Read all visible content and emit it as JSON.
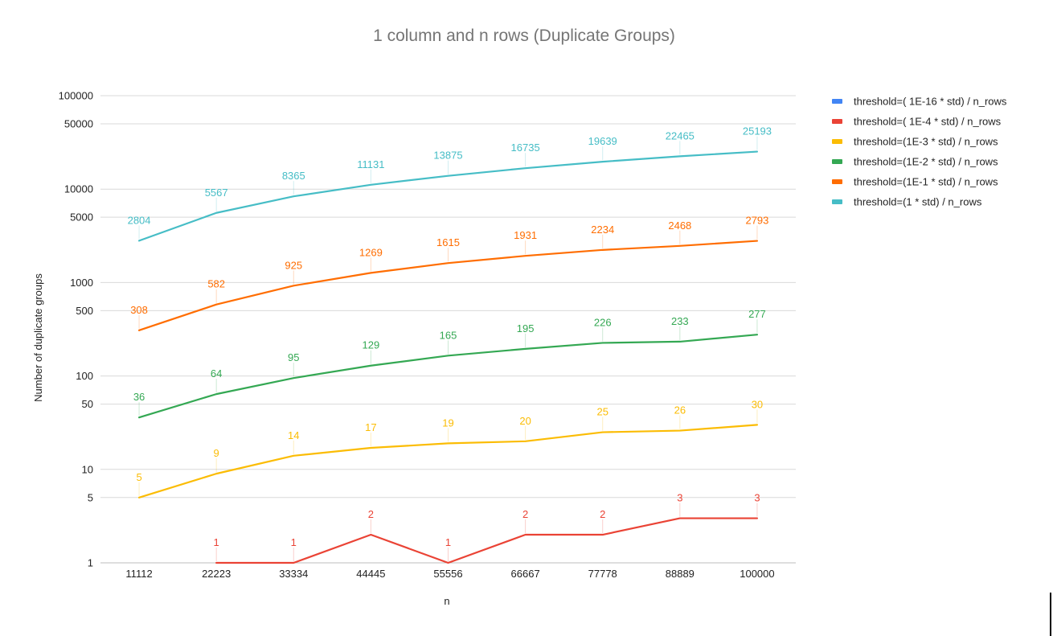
{
  "chart_data": {
    "type": "line",
    "title": "1 column and n rows (Duplicate Groups)",
    "xlabel": "n",
    "ylabel": "Number of duplicate groups",
    "yscale": "log",
    "ylim": [
      0.75,
      130000
    ],
    "yticks": [
      1,
      5,
      10,
      50,
      100,
      500,
      1000,
      5000,
      10000,
      50000,
      100000
    ],
    "grid": true,
    "legend_position": "right",
    "categories": [
      "11112",
      "22223",
      "33334",
      "44445",
      "55556",
      "66667",
      "77778",
      "88889",
      "100000"
    ],
    "series": [
      {
        "name": "threshold=( 1E-16 * std) / n_rows",
        "color": "#4285f4",
        "values": [
          null,
          null,
          null,
          null,
          null,
          null,
          null,
          null,
          null
        ]
      },
      {
        "name": "threshold=( 1E-4 * std) / n_rows",
        "color": "#ea4335",
        "values": [
          null,
          1,
          1,
          2,
          1,
          2,
          2,
          3,
          3
        ]
      },
      {
        "name": "threshold=(1E-3 * std) / n_rows",
        "color": "#fbbc04",
        "values": [
          5,
          9,
          14,
          17,
          19,
          20,
          25,
          26,
          30
        ]
      },
      {
        "name": "threshold=(1E-2 * std) / n_rows",
        "color": "#34a853",
        "values": [
          36,
          64,
          95,
          129,
          165,
          195,
          226,
          233,
          277
        ]
      },
      {
        "name": "threshold=(1E-1 * std) / n_rows",
        "color": "#ff6d01",
        "values": [
          308,
          582,
          925,
          1269,
          1615,
          1931,
          2234,
          2468,
          2793
        ]
      },
      {
        "name": "threshold=(1 * std) / n_rows",
        "color": "#46bdc6",
        "values": [
          2804,
          5567,
          8365,
          11131,
          13875,
          16735,
          19639,
          22465,
          25193
        ]
      }
    ]
  }
}
